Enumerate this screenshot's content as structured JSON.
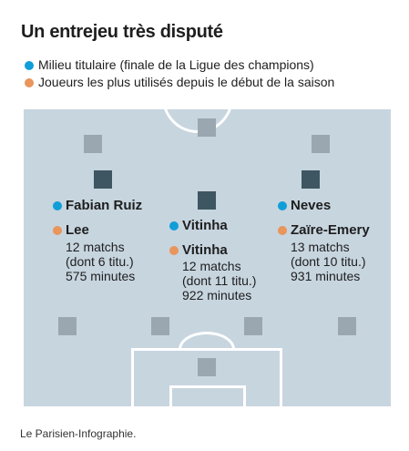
{
  "title": "Un entrejeu très disputé",
  "legend": {
    "titular": "Milieu titulaire (finale de la Ligue des champions)",
    "used": "Joueurs les plus utilisés depuis le début de la saison",
    "colors": {
      "titular": "#0f9ed8",
      "used": "#e9955b"
    }
  },
  "players": {
    "left": {
      "titular": "Fabian Ruiz",
      "used": "Lee",
      "matches": "12 matchs",
      "starts": "(dont 6 titu.)",
      "minutes": "575 minutes"
    },
    "center": {
      "titular": "Vitinha",
      "used": "Vitinha",
      "matches": "12 matchs",
      "starts": "(dont 11 titu.)",
      "minutes": "922 minutes"
    },
    "right": {
      "titular": "Neves",
      "used": "Zaïre-Emery",
      "matches": "13 matchs",
      "starts": "(dont 10 titu.)",
      "minutes": "931 minutes"
    }
  },
  "pitch_colors": {
    "field": "#c7d5df",
    "lines": "#ffffff",
    "other_players": "#9aa7b0",
    "midfielders": "#3e5661"
  },
  "credit": "Le Parisien-Infographie."
}
